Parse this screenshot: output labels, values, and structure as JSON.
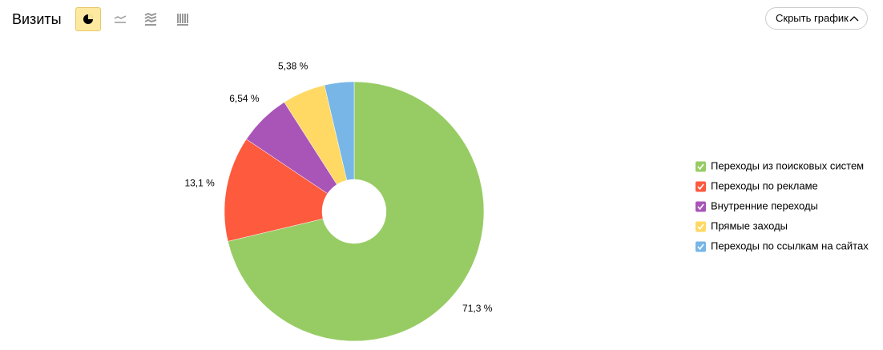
{
  "header": {
    "title": "Визиты",
    "button": "Скрыть график"
  },
  "chart_data": {
    "type": "pie",
    "categories": [
      "Переходы из поисковых систем",
      "Переходы по рекламе",
      "Внутренние переходы",
      "Прямые заходы",
      "Переходы по ссылкам на сайтах"
    ],
    "values": [
      71.3,
      13.1,
      6.54,
      5.38,
      3.68
    ],
    "value_labels": [
      "71,3 %",
      "13,1 %",
      "6,54 %",
      "5,38 %",
      null
    ],
    "colors": [
      "#97cc64",
      "#fd5a3e",
      "#a955b8",
      "#ffd963",
      "#77b6e7"
    ],
    "legend": "right"
  }
}
